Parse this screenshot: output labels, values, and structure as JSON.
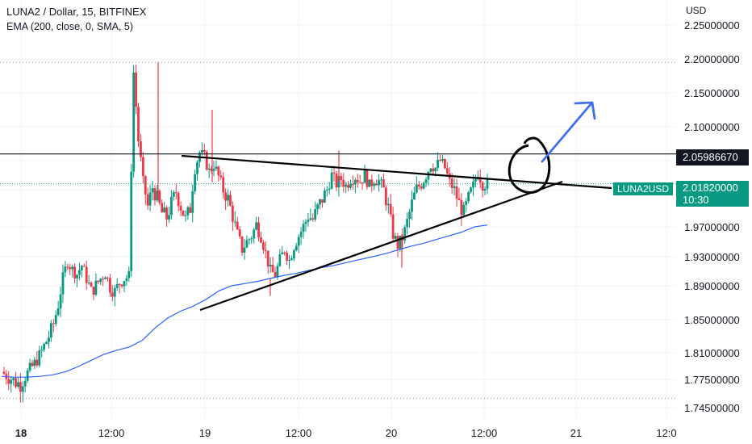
{
  "legend": {
    "title": "LUNA2 / Dollar, 15, BITFINEX",
    "indicator": "EMA (200, close, 0, SMA, 5)"
  },
  "colors": {
    "up": "#089981",
    "down": "#f23645",
    "ema": "#2962ff",
    "grid": "#f0f3fa",
    "arrow": "#3d6ff0"
  },
  "chart_data": {
    "type": "candlestick",
    "currency": "USD",
    "yticks": [
      2.25,
      2.2,
      2.15,
      2.1,
      2.05,
      2.01,
      1.97,
      1.93,
      1.89,
      1.85,
      1.81,
      1.775,
      1.745
    ],
    "ytick_labels": [
      "2.25000000",
      "2.20000000",
      "2.15000000",
      "2.10000000",
      "2.05000000",
      "2.01000000",
      "1.97000000",
      "1.93000000",
      "1.89000000",
      "1.85000000",
      "1.81000000",
      "1.77500000",
      "1.74500000"
    ],
    "xticks": [
      {
        "label": "18",
        "bold": true
      },
      {
        "label": "12:00"
      },
      {
        "label": "19"
      },
      {
        "label": "12:00"
      },
      {
        "label": "20"
      },
      {
        "label": "12:00"
      },
      {
        "label": "21"
      },
      {
        "label": "12:0"
      }
    ],
    "price_lines": {
      "resistance": {
        "value": 2.0598667,
        "label": "2.05986670"
      },
      "last": {
        "symbol": "LUNA2USD",
        "value": 2.0182,
        "label": "2.01820000",
        "countdown": "10:30"
      }
    },
    "dotted_levels": [
      2.195,
      1.755
    ],
    "price_series": [
      1.785,
      1.78,
      1.776,
      1.772,
      1.77,
      1.779,
      1.788,
      1.796,
      1.806,
      1.818,
      1.83,
      1.845,
      1.868,
      1.9,
      1.924,
      1.912,
      1.906,
      1.918,
      1.9,
      1.883,
      1.891,
      1.9,
      1.908,
      1.889,
      1.883,
      1.894,
      1.9,
      1.903,
      2.18,
      2.08,
      2.02,
      1.992,
      2.013,
      2.0,
      1.985,
      1.98,
      1.995,
      2.008,
      1.992,
      1.978,
      1.99,
      2.04,
      2.062,
      2.055,
      2.035,
      2.045,
      2.028,
      2.01,
      2.0,
      1.982,
      1.96,
      1.94,
      1.95,
      1.958,
      1.972,
      1.958,
      1.935,
      1.91,
      1.905,
      1.925,
      1.94,
      1.925,
      1.945,
      1.958,
      1.97,
      1.982,
      1.978,
      1.99,
      2.0,
      2.01,
      2.03,
      2.018,
      2.025,
      2.015,
      2.025,
      2.028,
      2.022,
      2.03,
      2.015,
      2.025,
      2.022,
      2.01,
      1.99,
      1.96,
      1.945,
      1.955,
      1.975,
      1.995,
      2.012,
      2.018,
      2.03,
      2.045,
      2.04,
      2.05,
      2.04,
      2.02,
      2.01,
      1.995,
      1.985,
      2.0,
      2.015,
      2.035,
      2.018,
      2.0182
    ],
    "ema_series": [
      1.779,
      1.778,
      1.778,
      1.779,
      1.781,
      1.785,
      1.792,
      1.8,
      1.808,
      1.813,
      1.817,
      1.825,
      1.84,
      1.852,
      1.86,
      1.866,
      1.874,
      1.884,
      1.89,
      1.893,
      1.896,
      1.9,
      1.904,
      1.907,
      1.911,
      1.915,
      1.918,
      1.922,
      1.926,
      1.93,
      1.934,
      1.939,
      1.944,
      1.948,
      1.953,
      1.958,
      1.963,
      1.97,
      1.972
    ]
  },
  "annotations": {
    "trendlines": [
      "upper-trendline",
      "lower-trendline"
    ],
    "shapes": [
      "ellipse",
      "breakout-arrow"
    ]
  }
}
